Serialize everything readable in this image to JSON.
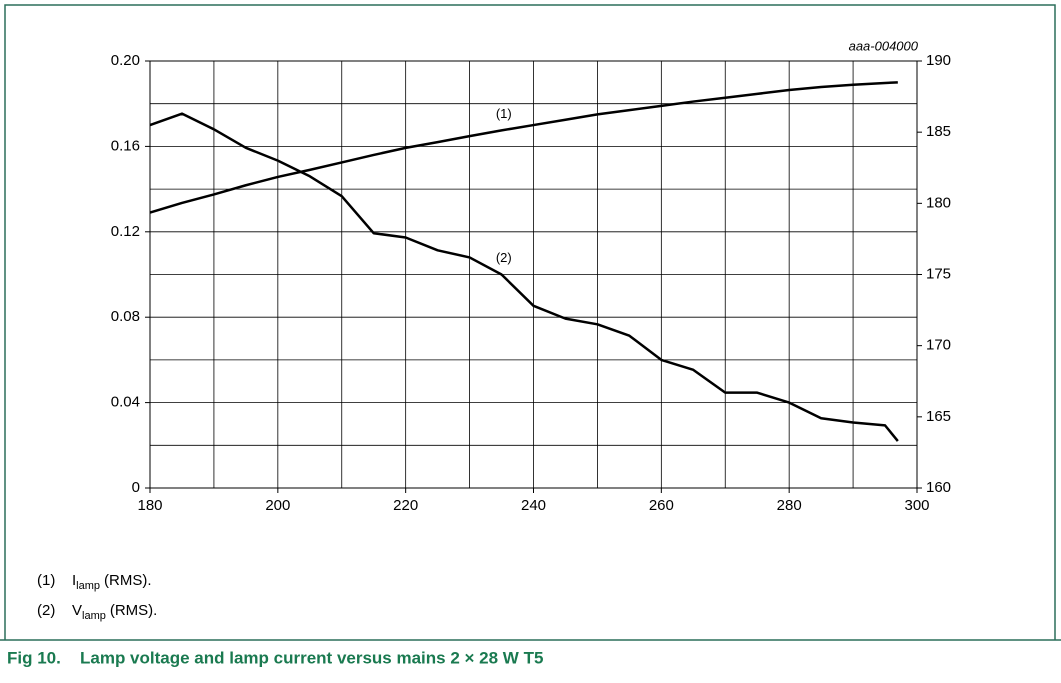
{
  "chart_data": {
    "type": "line",
    "code": "aaa-004000",
    "x": [
      180,
      185,
      190,
      195,
      200,
      205,
      210,
      215,
      220,
      225,
      230,
      235,
      240,
      245,
      250,
      255,
      260,
      265,
      270,
      275,
      280,
      285,
      290,
      295,
      297
    ],
    "series": [
      {
        "name": "(1)",
        "color": "#000000",
        "axis": "y",
        "label_at": 233,
        "values": [
          0.129,
          0.1335,
          0.1375,
          0.1418,
          0.1457,
          0.149,
          0.1525,
          0.156,
          0.1593,
          0.162,
          0.1648,
          0.1675,
          0.17,
          0.1725,
          0.175,
          0.177,
          0.179,
          0.181,
          0.1828,
          0.1846,
          0.1864,
          0.1878,
          0.1889,
          0.1897,
          0.19
        ]
      },
      {
        "name": "(2)",
        "color": "#000000",
        "axis": "y2",
        "label_at": 233,
        "values": [
          185.5,
          186.3,
          185.2,
          183.9,
          183.0,
          181.9,
          180.5,
          177.9,
          177.6,
          176.7,
          176.2,
          175.0,
          172.8,
          171.9,
          171.5,
          170.7,
          169.0,
          168.3,
          166.7,
          166.7,
          166.0,
          164.9,
          164.6,
          164.4,
          163.3
        ]
      }
    ],
    "xlim": [
      180,
      300
    ],
    "xticks": [
      180,
      200,
      220,
      240,
      260,
      280,
      300
    ],
    "xgrid": [
      180,
      190,
      200,
      210,
      220,
      230,
      240,
      250,
      260,
      270,
      280,
      290,
      300
    ],
    "ylim": [
      0,
      0.2
    ],
    "yticks": [
      0,
      0.04,
      0.08,
      0.12,
      0.16,
      {
        "value": 0.2,
        "label": "0.20"
      }
    ],
    "ygrid": [
      0,
      0.02,
      0.04,
      0.06,
      0.08,
      0.1,
      0.12,
      0.14,
      0.16,
      0.18,
      0.2
    ],
    "y2lim": [
      160,
      190
    ],
    "y2ticks": [
      160,
      165,
      170,
      175,
      180,
      185,
      190
    ],
    "grid": true
  },
  "notes": [
    {
      "label": "(1)",
      "symbol": "I",
      "subscript": "lamp",
      "text": "(RMS)."
    },
    {
      "label": "(2)",
      "symbol": "V",
      "subscript": "lamp",
      "text": "(RMS)."
    }
  ],
  "caption": {
    "number": "Fig 10.",
    "text": "Lamp voltage and lamp current versus mains 2 × 28 W T5"
  }
}
